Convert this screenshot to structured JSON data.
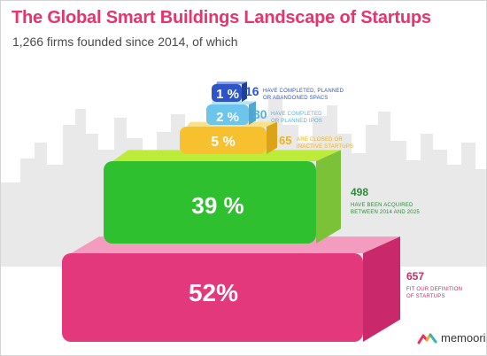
{
  "header": {
    "title": "The Global Smart Buildings Landscape of Startups",
    "subtitle": "1,266 firms founded since 2014, of which"
  },
  "brand": {
    "name": "memoori",
    "logo_colors": [
      "#e6335f",
      "#f7a823",
      "#2fb5b5"
    ]
  },
  "colors": {
    "title": "#e8336c",
    "skyline": "#e9e9e9"
  },
  "chart_data": {
    "type": "bar",
    "title": "The Global Smart Buildings Landscape of Startups",
    "subtitle": "1,266 firms founded since 2014, of which",
    "total": 1266,
    "categories": [
      "HAVE COMPLETED, PLANNED OR ABANDONED SPACS",
      "HAVE COMPLETED OR PLANNED IPOS",
      "ARE CLOSED OR INACTIVE STARTUPS",
      "HAVE BEEN ACQUIRED BETWEEN 2014 AND 2025",
      "FIT OUR DEFINITION OF STARTUPS"
    ],
    "tiers": [
      {
        "percent_label": "1 %",
        "percent": 1,
        "count": "16",
        "desc": [
          "HAVE COMPLETED, PLANNED",
          "OR ABANDONED SPACS"
        ],
        "front": "#2d55c8",
        "top": "#7f9cf0",
        "side": "#1f3f99",
        "label_color": "#2d55c8"
      },
      {
        "percent_label": "2 %",
        "percent": 2,
        "count": "30",
        "desc": [
          "HAVE COMPLETED",
          "OR PLANNED IPOS"
        ],
        "front": "#6dc5ec",
        "top": "#b4e3f7",
        "side": "#4fa6cf",
        "label_color": "#4db3e0"
      },
      {
        "percent_label": "5 %",
        "percent": 5,
        "count": "65",
        "desc": [
          "ARE CLOSED OR",
          "INACTIVE STARTUPS"
        ],
        "front": "#f7c02e",
        "top": "#fbe08a",
        "side": "#dba21a",
        "label_color": "#f0b019"
      },
      {
        "percent_label": "39 %",
        "percent": 39,
        "count": "498",
        "desc": [
          "HAVE BEEN ACQUIRED",
          "BETWEEN 2014 AND 2025"
        ],
        "front": "#2ec02e",
        "top": "#bdeb3a",
        "side": "#7cc239",
        "label_color": "#2e8b3a"
      },
      {
        "percent_label": "52%",
        "percent": 52,
        "count": "657",
        "desc": [
          "FIT OUR DEFINITION",
          "OF STARTUPS"
        ],
        "front": "#e3387c",
        "top": "#f49cc0",
        "side": "#c9286a",
        "label_color": "#c22f6a"
      }
    ]
  }
}
